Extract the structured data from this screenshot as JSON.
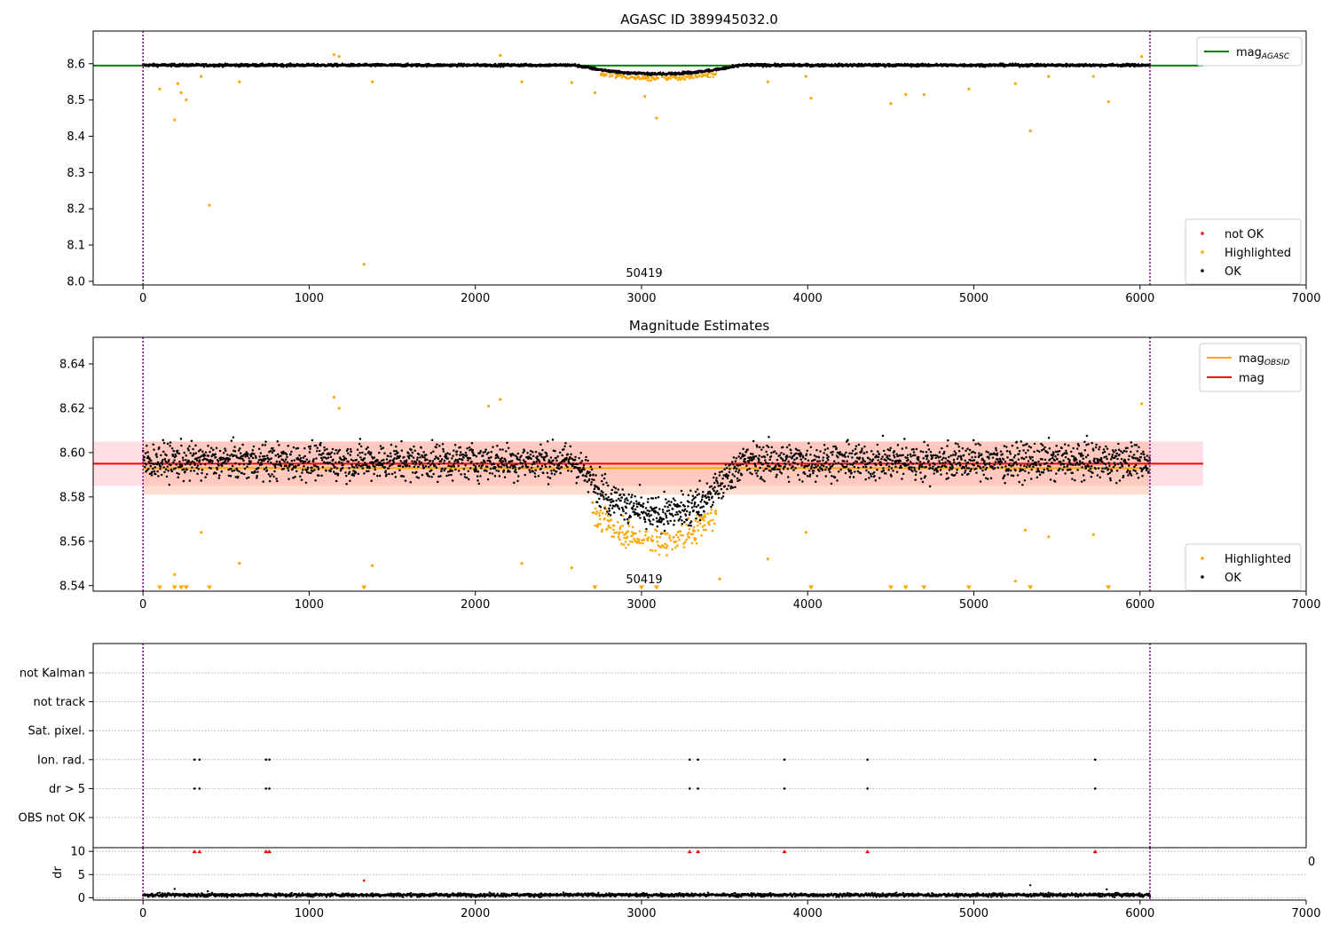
{
  "chart_data": [
    {
      "type": "scatter",
      "title": "AGASC ID 389945032.0",
      "xlim": [
        -300,
        7000
      ],
      "ylim": [
        7.99,
        8.69
      ],
      "xticks": [
        0,
        1000,
        2000,
        3000,
        4000,
        5000,
        6000,
        7000
      ],
      "yticks": [
        8.0,
        8.1,
        8.2,
        8.3,
        8.4,
        8.5,
        8.6
      ],
      "ytick_labels": [
        "8.0",
        "8.1",
        "8.2",
        "8.3",
        "8.4",
        "8.5",
        "8.6"
      ],
      "annotation": "50419",
      "vlines": [
        0,
        6060
      ],
      "lines": [
        {
          "name": "mag",
          "subscript": "AGASC",
          "y": 8.595,
          "x": [
            -300,
            6380
          ],
          "color": "#008000"
        }
      ],
      "legend_lines": [
        {
          "name": "mag",
          "subscript": "AGASC",
          "color": "#008000"
        }
      ],
      "legend_points": [
        {
          "name": "not OK",
          "color": "#ff0000"
        },
        {
          "name": "Highlighted",
          "color": "#ffa500"
        },
        {
          "name": "OK",
          "color": "#000000"
        }
      ],
      "series": [
        {
          "name": "OK",
          "color": "#000000",
          "x_range": [
            0,
            6060
          ],
          "baseline": 8.596,
          "dip": {
            "start": 2600,
            "end": 3600,
            "min": 8.572
          },
          "noise": 0.008
        },
        {
          "name": "Highlighted",
          "color": "#ffa500",
          "x": [
            100,
            190,
            210,
            230,
            260,
            350,
            400,
            580,
            1150,
            1180,
            1330,
            1380,
            2150,
            2280,
            2580,
            2720,
            3020,
            3090,
            3760,
            3990,
            4020,
            4500,
            4590,
            4700,
            4970,
            5250,
            5340,
            5450,
            5720,
            5810,
            6010
          ],
          "y": [
            8.53,
            8.445,
            8.545,
            8.52,
            8.5,
            8.565,
            8.21,
            8.55,
            8.625,
            8.62,
            8.047,
            8.55,
            8.623,
            8.55,
            8.548,
            8.52,
            8.51,
            8.45,
            8.55,
            8.565,
            8.505,
            8.49,
            8.515,
            8.515,
            8.53,
            8.545,
            8.415,
            8.565,
            8.565,
            8.495,
            8.62
          ]
        }
      ]
    },
    {
      "type": "scatter",
      "title": "Magnitude Estimates",
      "xlim": [
        -300,
        7000
      ],
      "ylim": [
        8.5375,
        8.652
      ],
      "xticks": [
        0,
        1000,
        2000,
        3000,
        4000,
        5000,
        6000,
        7000
      ],
      "yticks": [
        8.54,
        8.56,
        8.58,
        8.6,
        8.62,
        8.64
      ],
      "ytick_labels": [
        "8.54",
        "8.56",
        "8.58",
        "8.60",
        "8.62",
        "8.64"
      ],
      "annotation": "50419",
      "vlines": [
        0,
        6060
      ],
      "bands": [
        {
          "y0": 8.585,
          "y1": 8.605,
          "x": [
            -300,
            6380
          ],
          "color": "#ffc0cb",
          "opacity": 0.5
        },
        {
          "y0": 8.581,
          "y1": 8.605,
          "x": [
            0,
            6060
          ],
          "color": "#ffa07a",
          "opacity": 0.35
        }
      ],
      "lines": [
        {
          "name": "mag",
          "subscript": "OBSID",
          "y": 8.593,
          "x": [
            0,
            6060
          ],
          "color": "#ffa500"
        },
        {
          "name": "mag",
          "y": 8.595,
          "x": [
            -300,
            6380
          ],
          "color": "#ff0000"
        }
      ],
      "legend_lines": [
        {
          "name": "mag",
          "subscript": "OBSID",
          "color": "#ffa500"
        },
        {
          "name": "mag",
          "color": "#ff0000"
        }
      ],
      "legend_points": [
        {
          "name": "Highlighted",
          "color": "#ffa500"
        },
        {
          "name": "OK",
          "color": "#000000"
        }
      ],
      "series": [
        {
          "name": "OK",
          "color": "#000000",
          "x_range": [
            0,
            6060
          ],
          "baseline": 8.596,
          "dip": {
            "start": 2600,
            "end": 3600,
            "min": 8.572
          },
          "noise": 0.008
        },
        {
          "name": "Highlighted",
          "color": "#ffa500",
          "x": [
            190,
            350,
            580,
            1150,
            1180,
            1380,
            2080,
            2150,
            2280,
            2580,
            3470,
            3760,
            3990,
            5250,
            5310,
            5450,
            5720,
            6010
          ],
          "y": [
            8.545,
            8.564,
            8.55,
            8.625,
            8.62,
            8.549,
            8.621,
            8.624,
            8.55,
            8.548,
            8.543,
            8.552,
            8.564,
            8.542,
            8.565,
            8.562,
            8.563,
            8.622
          ]
        },
        {
          "name": "Highlighted below range",
          "color": "#ffa500",
          "marker": "triangle-down",
          "x": [
            100,
            190,
            230,
            260,
            400,
            1330,
            2720,
            3000,
            3090,
            4020,
            4500,
            4590,
            4700,
            4970,
            5340,
            5810
          ]
        }
      ]
    },
    {
      "type": "scatter",
      "yticks": [
        "not Kalman",
        "not track",
        "Sat. pixel.",
        "Ion. rad.",
        "dr > 5",
        "OBS not OK"
      ],
      "xlim": [
        -300,
        7000
      ],
      "vlines": [
        0,
        6060
      ],
      "series": [
        {
          "name": "Ion. rad.",
          "x": [
            310,
            340,
            740,
            760,
            3290,
            3340,
            3860,
            4360,
            5730
          ]
        },
        {
          "name": "dr > 5",
          "x": [
            310,
            340,
            740,
            760,
            3290,
            3340,
            3860,
            4360,
            5730
          ]
        }
      ]
    },
    {
      "type": "scatter",
      "ylabel": "dr",
      "xlim": [
        -300,
        7000
      ],
      "ylim": [
        -0.5,
        10.8
      ],
      "xticks": [
        0,
        1000,
        2000,
        3000,
        4000,
        5000,
        6000,
        7000
      ],
      "yticks": [
        0,
        5,
        10
      ],
      "clipped_tick_label": "0",
      "vlines": [
        0,
        6060
      ],
      "series": [
        {
          "name": "dr",
          "color": "#000000",
          "x_range": [
            0,
            6060
          ],
          "baseline": 0.6,
          "noise": 0.35
        },
        {
          "name": "dr outliers",
          "color": "#000000",
          "x": [
            190,
            390,
            5340,
            5800
          ],
          "y": [
            1.9,
            1.4,
            2.7,
            1.8
          ]
        },
        {
          "name": "dr highlighted",
          "color": "#ff0000",
          "x": [
            1330
          ],
          "y": [
            3.7
          ]
        },
        {
          "name": "dr > 10",
          "color": "#ff0000",
          "marker": "triangle-up",
          "x": [
            310,
            340,
            740,
            760,
            3290,
            3340,
            3860,
            4360,
            5730
          ]
        }
      ]
    }
  ]
}
